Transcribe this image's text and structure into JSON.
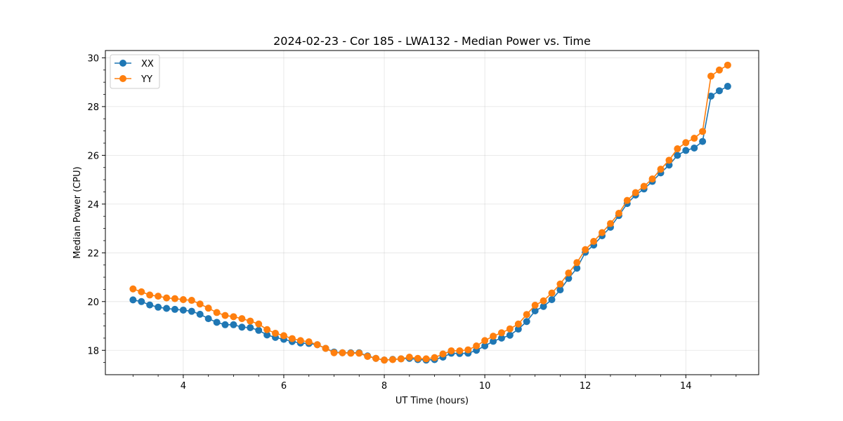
{
  "chart_data": {
    "type": "line",
    "title": "2024-02-23 - Cor 185 - LWA132 - Median Power vs. Time",
    "xlabel": "UT Time (hours)",
    "ylabel": "Median Power (CPU)",
    "xlim": [
      2.45,
      15.45
    ],
    "ylim": [
      17.0,
      30.3
    ],
    "x_ticks": [
      4,
      6,
      8,
      10,
      12,
      14
    ],
    "x_tick_labels": [
      "4",
      "6",
      "8",
      "10",
      "12",
      "14"
    ],
    "y_ticks": [
      18,
      20,
      22,
      24,
      26,
      28,
      30
    ],
    "y_tick_labels": [
      "18",
      "20",
      "22",
      "24",
      "26",
      "28",
      "30"
    ],
    "grid": true,
    "legend_position": "top-left",
    "x": [
      3.0,
      3.167,
      3.333,
      3.5,
      3.667,
      3.833,
      4.0,
      4.167,
      4.333,
      4.5,
      4.667,
      4.833,
      5.0,
      5.167,
      5.333,
      5.5,
      5.667,
      5.833,
      6.0,
      6.167,
      6.333,
      6.5,
      6.667,
      6.833,
      7.0,
      7.167,
      7.333,
      7.5,
      7.667,
      7.833,
      8.0,
      8.167,
      8.333,
      8.5,
      8.667,
      8.833,
      9.0,
      9.167,
      9.333,
      9.5,
      9.667,
      9.833,
      10.0,
      10.167,
      10.333,
      10.5,
      10.667,
      10.833,
      11.0,
      11.167,
      11.333,
      11.5,
      11.667,
      11.833,
      12.0,
      12.167,
      12.333,
      12.5,
      12.667,
      12.833,
      13.0,
      13.167,
      13.333,
      13.5,
      13.667,
      13.833,
      14.0,
      14.167,
      14.333,
      14.5,
      14.667,
      14.833
    ],
    "series": [
      {
        "name": "XX",
        "color": "#1f77b4",
        "values": [
          20.07,
          20.0,
          19.86,
          19.77,
          19.72,
          19.68,
          19.65,
          19.6,
          19.48,
          19.3,
          19.15,
          19.05,
          19.05,
          18.95,
          18.93,
          18.82,
          18.63,
          18.53,
          18.45,
          18.36,
          18.3,
          18.28,
          18.23,
          18.08,
          17.93,
          17.9,
          17.9,
          17.9,
          17.77,
          17.67,
          17.6,
          17.63,
          17.65,
          17.67,
          17.62,
          17.6,
          17.62,
          17.72,
          17.88,
          17.87,
          17.88,
          18.0,
          18.18,
          18.37,
          18.5,
          18.62,
          18.87,
          19.18,
          19.62,
          19.8,
          20.08,
          20.48,
          20.95,
          21.37,
          22.02,
          22.32,
          22.7,
          23.05,
          23.53,
          24.02,
          24.37,
          24.62,
          24.93,
          25.28,
          25.6,
          26.0,
          26.2,
          26.3,
          26.57,
          28.43,
          28.65,
          28.83
        ]
      },
      {
        "name": "YY",
        "color": "#ff7f0e",
        "values": [
          20.52,
          20.4,
          20.27,
          20.22,
          20.15,
          20.12,
          20.08,
          20.05,
          19.9,
          19.73,
          19.55,
          19.43,
          19.38,
          19.3,
          19.2,
          19.08,
          18.85,
          18.7,
          18.6,
          18.48,
          18.4,
          18.35,
          18.23,
          18.08,
          17.9,
          17.9,
          17.88,
          17.88,
          17.75,
          17.67,
          17.6,
          17.62,
          17.65,
          17.72,
          17.67,
          17.65,
          17.7,
          17.85,
          17.98,
          17.98,
          18.02,
          18.18,
          18.4,
          18.58,
          18.72,
          18.88,
          19.08,
          19.47,
          19.85,
          20.03,
          20.35,
          20.72,
          21.17,
          21.6,
          22.13,
          22.47,
          22.83,
          23.2,
          23.62,
          24.15,
          24.47,
          24.73,
          25.03,
          25.43,
          25.8,
          26.27,
          26.52,
          26.7,
          26.98,
          29.25,
          29.5,
          29.7
        ]
      }
    ]
  }
}
